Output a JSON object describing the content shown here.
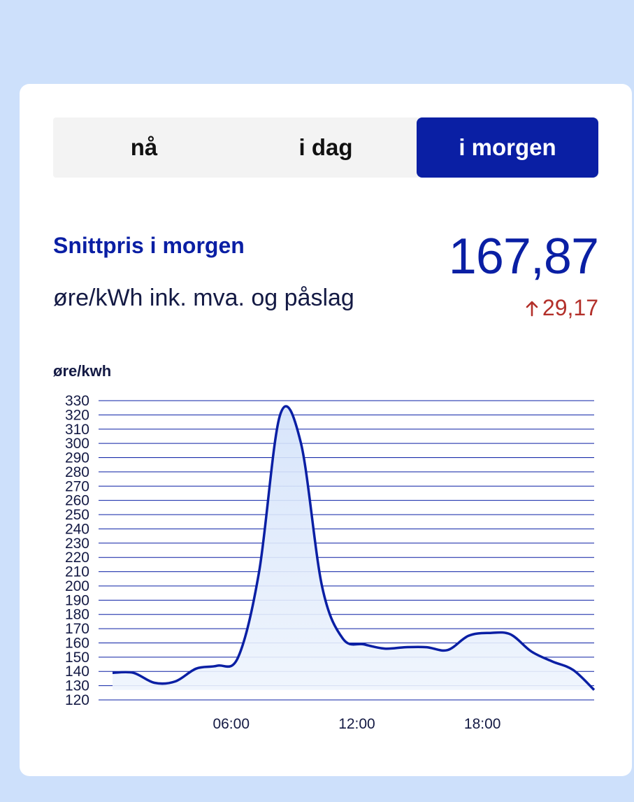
{
  "tabs": [
    {
      "label": "nå",
      "active": false
    },
    {
      "label": "i dag",
      "active": false
    },
    {
      "label": "i morgen",
      "active": true
    }
  ],
  "summary": {
    "title": "Snittpris i morgen",
    "unit": "øre/kWh ink. mva. og påslag",
    "value": "167,87",
    "change": "29,17",
    "change_direction": "up",
    "change_icon": "arrow-up-icon"
  },
  "colors": {
    "brand": "#0a1fa4",
    "background": "#cde0fb",
    "change_up": "#b3302a",
    "area_fill": "#d9e6fb"
  },
  "chart_data": {
    "type": "area",
    "ylabel": "øre/kwh",
    "ylim": [
      120,
      330
    ],
    "yticks": [
      120,
      130,
      140,
      150,
      160,
      170,
      180,
      190,
      200,
      210,
      220,
      230,
      240,
      250,
      260,
      270,
      280,
      290,
      300,
      310,
      320,
      330
    ],
    "xlim": [
      0,
      23
    ],
    "xticks": [
      {
        "value": 6,
        "label": "06:00"
      },
      {
        "value": 12,
        "label": "12:00"
      },
      {
        "value": 18,
        "label": "18:00"
      }
    ],
    "grid": true,
    "series": [
      {
        "x": [
          0,
          1,
          2,
          3,
          4,
          5,
          6,
          7,
          8,
          9,
          10,
          11,
          12,
          13,
          14,
          15,
          16,
          17,
          18,
          19,
          20,
          21,
          22,
          23
        ],
        "y": [
          139,
          139,
          132,
          133,
          142,
          144,
          150,
          210,
          320,
          300,
          200,
          163,
          159,
          156,
          157,
          157,
          155,
          165,
          167,
          166,
          154,
          147,
          141,
          127
        ]
      }
    ]
  }
}
